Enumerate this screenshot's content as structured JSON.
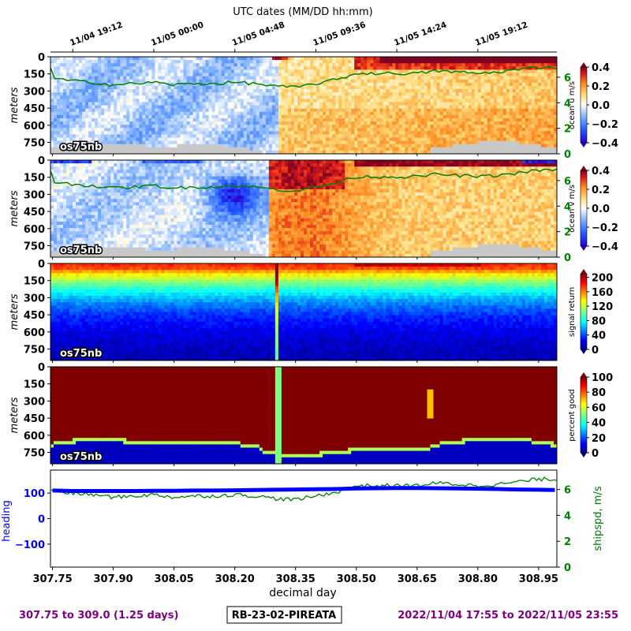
{
  "chart_data": {
    "type": "heatmap",
    "top_axis_title": "UTC dates (MM/DD hh:mm)",
    "date_ticks": [
      "11/04 19:12",
      "11/05 00:00",
      "11/05 04:48",
      "11/05 09:36",
      "11/05 14:24",
      "11/05 19:12"
    ],
    "date_tick_decimal_days": [
      307.8,
      308.0,
      308.2,
      308.4,
      308.6,
      308.8
    ],
    "xlabel": "decimal day",
    "xlim": [
      307.745,
      308.995
    ],
    "x_ticks": [
      "307.75",
      "307.90",
      "308.05",
      "308.20",
      "308.35",
      "308.50",
      "308.65",
      "308.80",
      "308.95"
    ],
    "depth_ylabel": "meters",
    "depth_ticks": [
      "0",
      "150",
      "300",
      "450",
      "600",
      "750"
    ],
    "depth_range": [
      0,
      850
    ],
    "instrument_label": "os75nb",
    "panels": [
      {
        "name": "ocean u",
        "colorbar_label": "ocean u m/s",
        "colorbar_ticks": [
          "0.4",
          "0.2",
          "0.0",
          "−0.2",
          "−0.4"
        ],
        "colormap": "blue-white-red",
        "vmin": -0.4,
        "vmax": 0.4,
        "right_axis_ticks": [
          "6",
          "4",
          "2",
          "0"
        ]
      },
      {
        "name": "ocean v",
        "colorbar_label": "ocean v m/s",
        "colorbar_ticks": [
          "0.4",
          "0.2",
          "0.0",
          "−0.2",
          "−0.4"
        ],
        "colormap": "blue-white-red",
        "vmin": -0.4,
        "vmax": 0.4,
        "right_axis_ticks": [
          "6",
          "4",
          "2",
          "0"
        ]
      },
      {
        "name": "signal return",
        "colorbar_label": "signal return",
        "colorbar_ticks": [
          "200",
          "160",
          "120",
          "80",
          "40",
          "0"
        ],
        "colormap": "jet",
        "vmin": 0,
        "vmax": 210
      },
      {
        "name": "percent good",
        "colorbar_label": "percent good",
        "colorbar_ticks": [
          "100",
          "80",
          "60",
          "40",
          "20",
          "0"
        ],
        "colormap": "jet",
        "vmin": 0,
        "vmax": 100
      }
    ],
    "bottom_panel": {
      "left_label": "heading",
      "left_ticks": [
        "100",
        "0",
        "−100"
      ],
      "left_range": [
        -190,
        190
      ],
      "right_label": "shipspd, m/s",
      "right_ticks": [
        "6",
        "4",
        "2",
        "0"
      ],
      "right_range": [
        0,
        7.5
      ],
      "heading_x": [
        307.75,
        307.8,
        307.85,
        307.9,
        307.95,
        308.0,
        308.05,
        308.1,
        308.15,
        308.2,
        308.25,
        308.3,
        308.35,
        308.4,
        308.45,
        308.5,
        308.55,
        308.6,
        308.65,
        308.7,
        308.75,
        308.8,
        308.85,
        308.9,
        308.95,
        308.99
      ],
      "heading_y": [
        110,
        108,
        108,
        108,
        108,
        109,
        109,
        110,
        110,
        111,
        112,
        113,
        114,
        115,
        116,
        118,
        119,
        120,
        120,
        119,
        118,
        117,
        116,
        114,
        113,
        112
      ],
      "shipspd_x": [
        307.75,
        307.8,
        307.85,
        307.9,
        307.95,
        308.0,
        308.05,
        308.1,
        308.15,
        308.2,
        308.25,
        308.3,
        308.35,
        308.4,
        308.45,
        308.5,
        308.55,
        308.6,
        308.65,
        308.7,
        308.75,
        308.8,
        308.85,
        308.9,
        308.95,
        308.99
      ],
      "shipspd_y": [
        5.9,
        5.7,
        5.6,
        5.4,
        5.5,
        5.6,
        5.4,
        5.5,
        5.5,
        5.6,
        5.5,
        5.3,
        5.2,
        5.5,
        5.8,
        6.3,
        6.3,
        6.3,
        6.3,
        6.5,
        6.4,
        6.3,
        6.4,
        6.6,
        6.8,
        6.8
      ]
    },
    "footer_left": "307.75 to 309.0 (1.25 days)",
    "footer_center": "RB-23-02-PIREATA",
    "footer_right": "2022/11/04 17:55 to 2022/11/05 23:55",
    "colors": {
      "heading": "#0000ff",
      "shipspd": "#008000",
      "footer": "#800080",
      "nodata": "#c8c8c8"
    }
  }
}
